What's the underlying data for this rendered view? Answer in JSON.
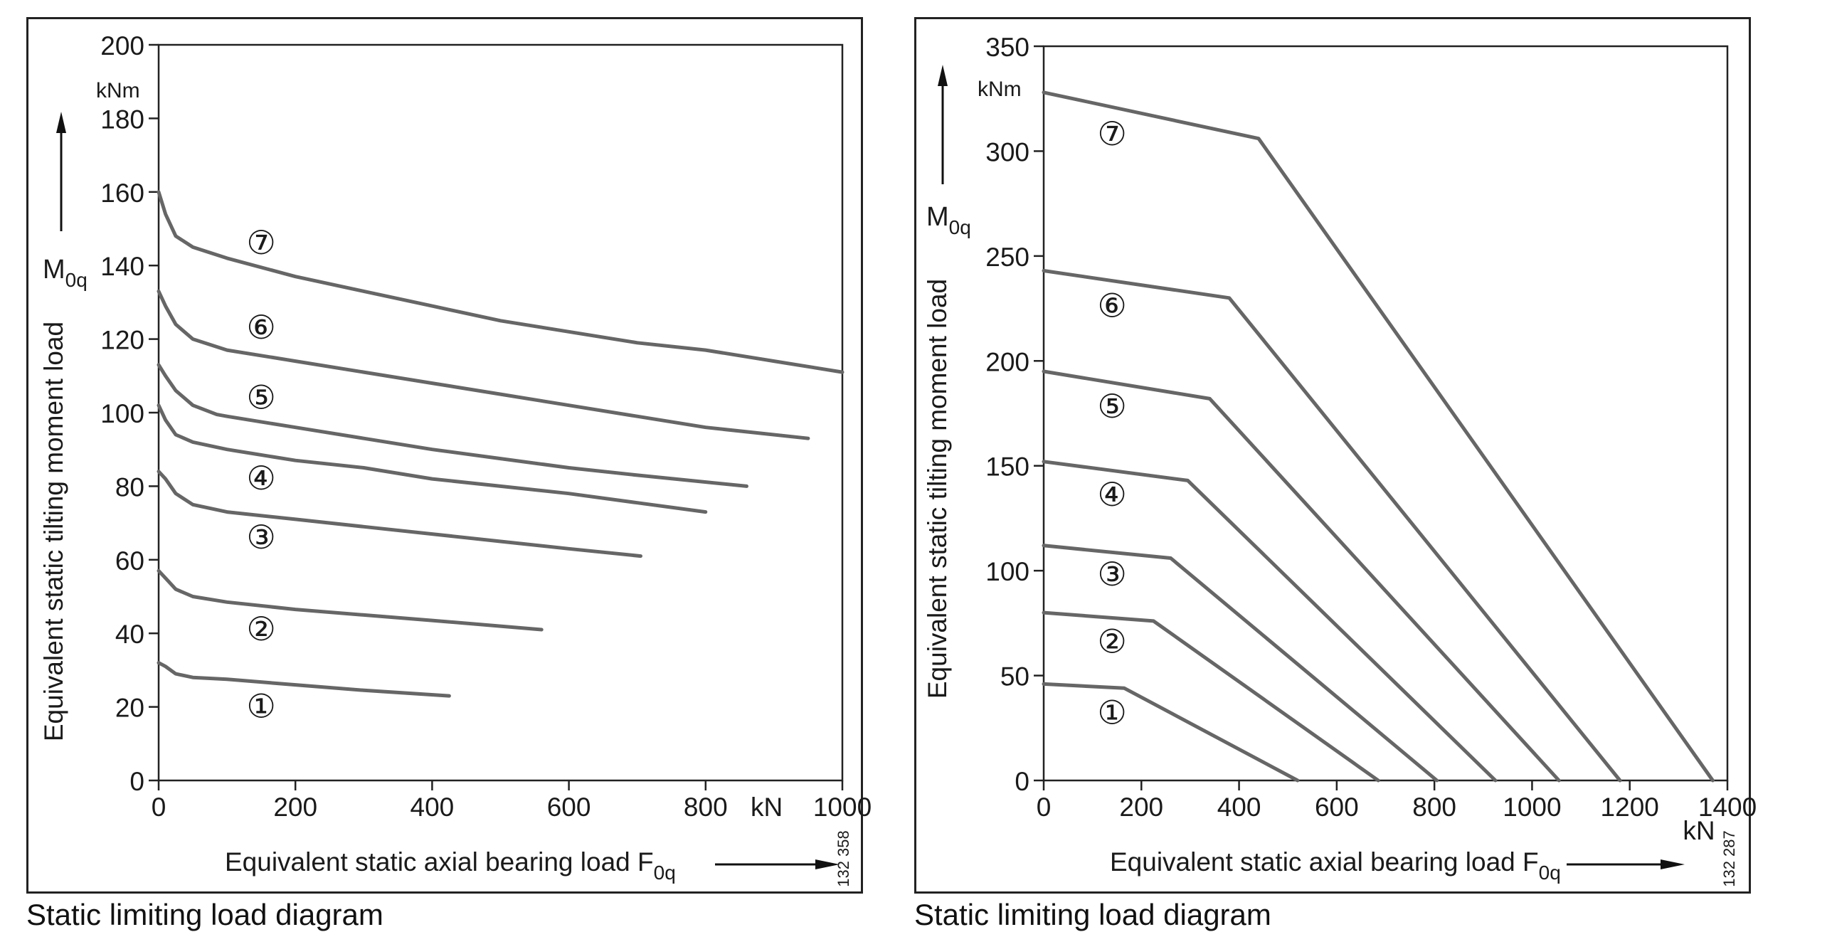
{
  "chart_data": [
    {
      "type": "line",
      "caption": "Static limiting load diagram",
      "xlabel": "Equivalent static axial bearing load",
      "xsymbol": "F",
      "xsymbol_sub": "0q",
      "x_unit": "kN",
      "ylabel": "Equivalent static tilting moment load",
      "ysymbol": "M",
      "ysymbol_sub": "0q",
      "y_unit": "kNm",
      "xlim": [
        0,
        1000
      ],
      "ylim": [
        0,
        200
      ],
      "xticks": [
        0,
        200,
        400,
        600,
        800,
        1000
      ],
      "yticks": [
        0,
        20,
        40,
        60,
        80,
        100,
        120,
        140,
        160,
        180,
        200
      ],
      "code": "132 358",
      "grid": false,
      "series": [
        {
          "name": "①",
          "label_at": [
            150,
            20
          ],
          "x": [
            0,
            10,
            25,
            50,
            100,
            200,
            300,
            425
          ],
          "y": [
            32,
            31,
            29,
            28,
            27.5,
            26,
            24.5,
            23
          ]
        },
        {
          "name": "②",
          "label_at": [
            150,
            41
          ],
          "x": [
            0,
            10,
            25,
            50,
            100,
            200,
            300,
            400,
            560
          ],
          "y": [
            57,
            55,
            52,
            50,
            48.5,
            46.5,
            45,
            43.5,
            41
          ]
        },
        {
          "name": "③",
          "label_at": [
            150,
            66
          ],
          "x": [
            0,
            10,
            25,
            50,
            100,
            200,
            300,
            400,
            500,
            600,
            705
          ],
          "y": [
            84,
            82,
            78,
            75,
            73,
            71,
            69,
            67,
            65,
            63,
            61
          ]
        },
        {
          "name": "④",
          "label_at": [
            150,
            82
          ],
          "x": [
            0,
            10,
            25,
            50,
            100,
            200,
            300,
            400,
            500,
            600,
            700,
            800
          ],
          "y": [
            102,
            98,
            94,
            92,
            90,
            87,
            85,
            82,
            80,
            78,
            75.5,
            73
          ]
        },
        {
          "name": "⑤",
          "label_at": [
            150,
            104
          ],
          "x": [
            0,
            10,
            25,
            50,
            85,
            100,
            200,
            300,
            400,
            500,
            600,
            700,
            860
          ],
          "y": [
            113,
            110,
            106,
            102,
            99.5,
            99,
            96,
            93,
            90,
            87.5,
            85,
            83,
            80
          ]
        },
        {
          "name": "⑥",
          "label_at": [
            150,
            123
          ],
          "x": [
            0,
            10,
            25,
            50,
            100,
            200,
            300,
            400,
            500,
            600,
            700,
            800,
            950
          ],
          "y": [
            133,
            129,
            124,
            120,
            117,
            114,
            111,
            108,
            105,
            102,
            99,
            96,
            93
          ]
        },
        {
          "name": "⑦",
          "label_at": [
            150,
            146
          ],
          "x": [
            0,
            10,
            25,
            50,
            100,
            200,
            300,
            400,
            500,
            600,
            700,
            800,
            900,
            1000
          ],
          "y": [
            160,
            154,
            148,
            145,
            142,
            137,
            133,
            129,
            125,
            122,
            119,
            117,
            114,
            111
          ]
        }
      ]
    },
    {
      "type": "line",
      "caption": "Static limiting load diagram",
      "xlabel": "Equivalent static axial bearing load",
      "xsymbol": "F",
      "xsymbol_sub": "0q",
      "x_unit": "kN",
      "ylabel": "Equivalent static tilting moment load",
      "ysymbol": "M",
      "ysymbol_sub": "0q",
      "y_unit": "kNm",
      "xlim": [
        0,
        1400
      ],
      "ylim": [
        0,
        350
      ],
      "xticks": [
        0,
        200,
        400,
        600,
        800,
        1000,
        1200,
        1400
      ],
      "yticks": [
        0,
        50,
        100,
        150,
        200,
        250,
        300,
        350
      ],
      "code": "132 287",
      "grid": false,
      "series": [
        {
          "name": "①",
          "label_at": [
            140,
            32
          ],
          "x": [
            0,
            165,
            520
          ],
          "y": [
            46,
            44,
            0
          ]
        },
        {
          "name": "②",
          "label_at": [
            140,
            66
          ],
          "x": [
            0,
            225,
            685
          ],
          "y": [
            80,
            76,
            0
          ]
        },
        {
          "name": "③",
          "label_at": [
            140,
            98
          ],
          "x": [
            0,
            260,
            805
          ],
          "y": [
            112,
            106,
            0
          ]
        },
        {
          "name": "④",
          "label_at": [
            140,
            136
          ],
          "x": [
            0,
            295,
            925
          ],
          "y": [
            152,
            143,
            0
          ]
        },
        {
          "name": "⑤",
          "label_at": [
            140,
            178
          ],
          "x": [
            0,
            340,
            1055
          ],
          "y": [
            195,
            182,
            0
          ]
        },
        {
          "name": "⑥",
          "label_at": [
            140,
            226
          ],
          "x": [
            0,
            380,
            1180
          ],
          "y": [
            243,
            230,
            0
          ]
        },
        {
          "name": "⑦",
          "label_at": [
            140,
            308
          ],
          "x": [
            0,
            440,
            1370
          ],
          "y": [
            328,
            306,
            0
          ]
        }
      ]
    }
  ]
}
